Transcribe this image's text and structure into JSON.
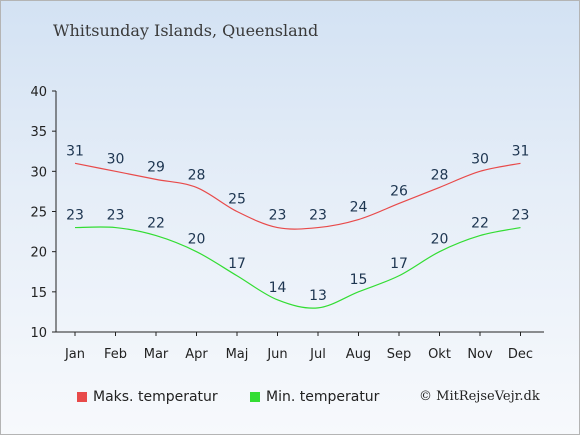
{
  "title": "Whitsunday Islands, Queensland",
  "credit": "© MitRejseVejr.dk",
  "chart_data": {
    "type": "line",
    "categories": [
      "Jan",
      "Feb",
      "Mar",
      "Apr",
      "Maj",
      "Jun",
      "Jul",
      "Aug",
      "Sep",
      "Okt",
      "Nov",
      "Dec"
    ],
    "series": [
      {
        "name": "Maks. temperatur",
        "color": "#e84a4a",
        "values": [
          31,
          30,
          29,
          28,
          25,
          23,
          23,
          24,
          26,
          28,
          30,
          31
        ]
      },
      {
        "name": "Min. temperatur",
        "color": "#33dd33",
        "values": [
          23,
          23,
          22,
          20,
          17,
          14,
          13,
          15,
          17,
          20,
          22,
          23
        ]
      }
    ],
    "y_ticks": [
      10,
      15,
      20,
      25,
      30,
      35,
      40
    ],
    "ylim": [
      10,
      40
    ],
    "legend_position": "bottom-left",
    "grid": false
  }
}
